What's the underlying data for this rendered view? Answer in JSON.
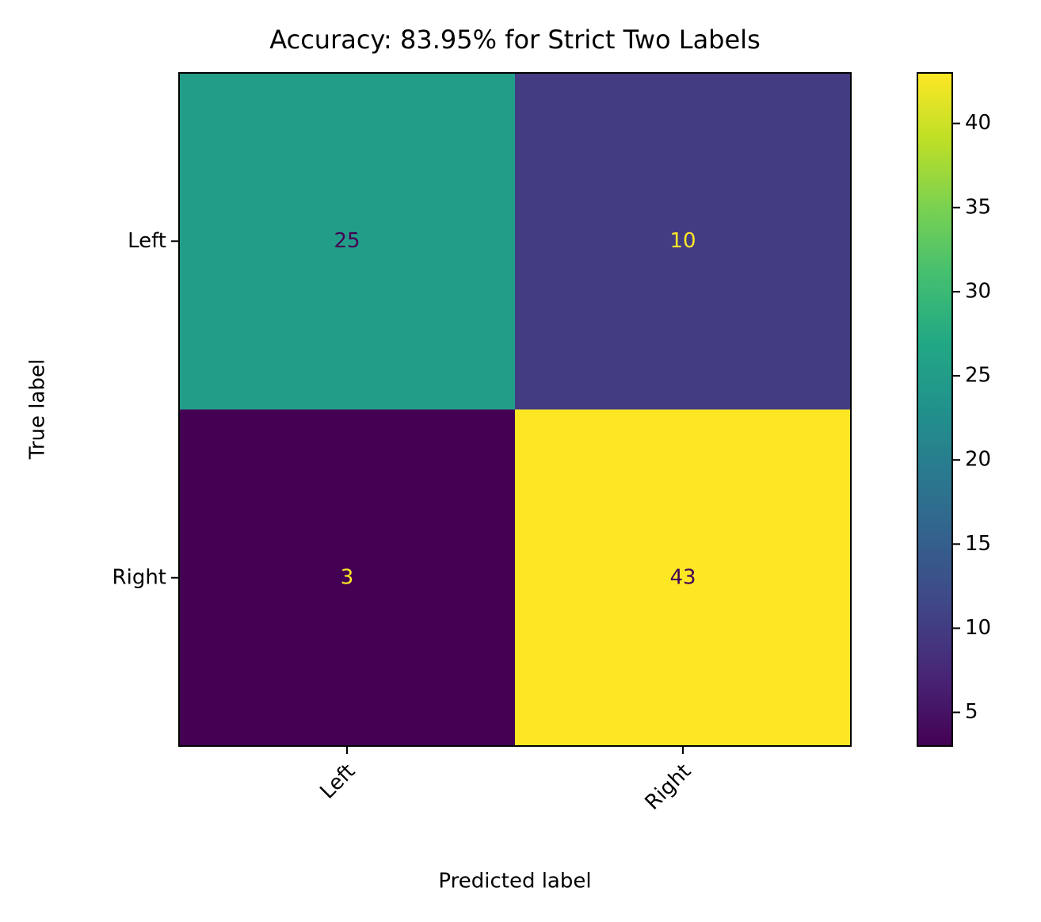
{
  "chart_data": {
    "type": "heatmap",
    "title": "Accuracy: 83.95% for Strict Two Labels",
    "x_label": "Predicted label",
    "y_label": "True label",
    "x_categories": [
      "Left",
      "Right"
    ],
    "y_categories": [
      "Left",
      "Right"
    ],
    "values": [
      [
        25,
        10
      ],
      [
        3,
        43
      ]
    ],
    "colormap": "viridis",
    "clim": [
      3,
      43
    ],
    "cticks": [
      5,
      10,
      15,
      20,
      25,
      30,
      35,
      40
    ]
  }
}
